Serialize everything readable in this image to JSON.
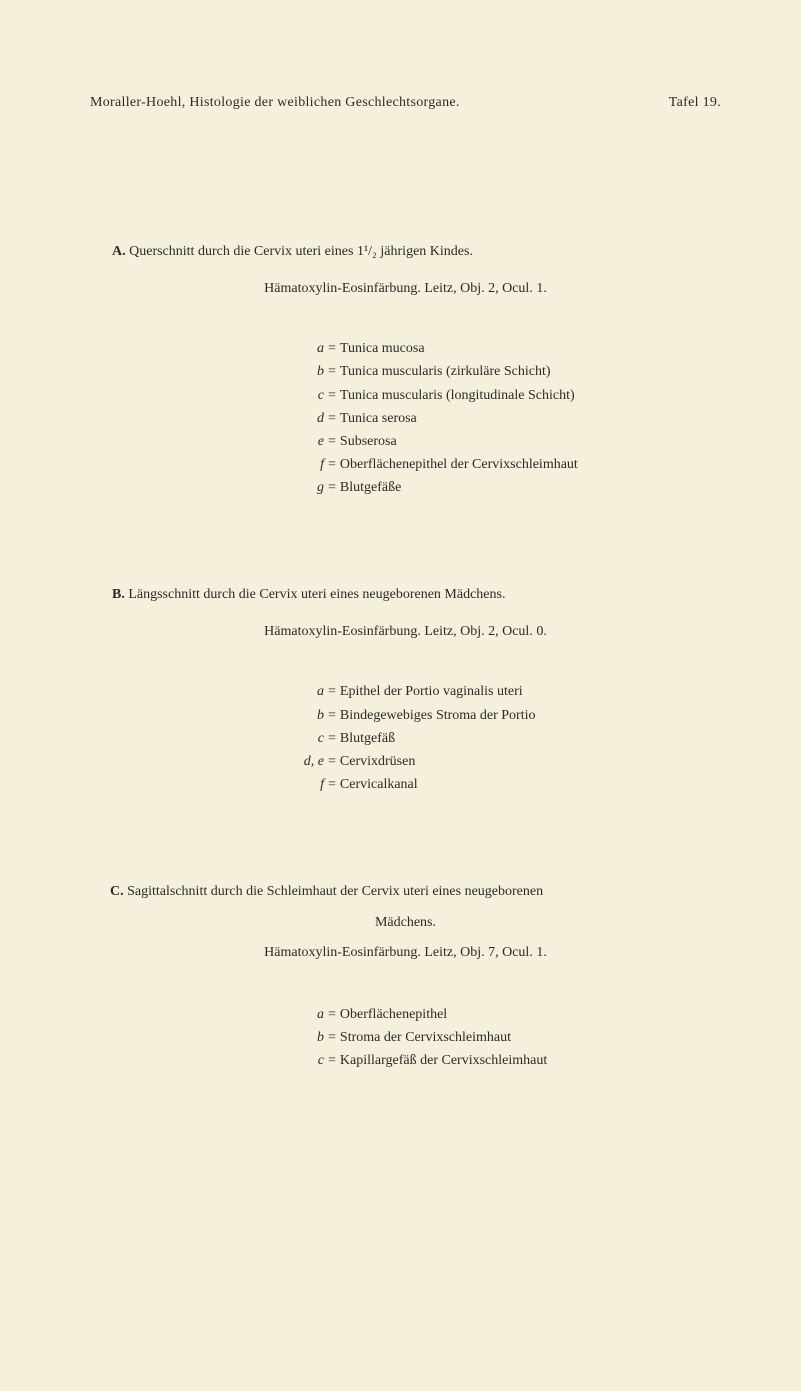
{
  "header": {
    "left": "Moraller-Hoehl, Histologie der weiblichen Geschlechtsorgane.",
    "right": "Tafel 19."
  },
  "sectionA": {
    "letter": "A.",
    "title": "Querschnitt durch die Cervix uteri eines 1¹/₂ jährigen Kindes.",
    "subtitle": "Hämatoxylin-Eosinfärbung.   Leitz, Obj. 2, Ocul. 1.",
    "items": [
      {
        "key": "a",
        "eq": "=",
        "value": "Tunica mucosa"
      },
      {
        "key": "b",
        "eq": "=",
        "value": "Tunica muscularis (zirkuläre Schicht)"
      },
      {
        "key": "c",
        "eq": "=",
        "value": "Tunica muscularis (longitudinale Schicht)"
      },
      {
        "key": "d",
        "eq": "=",
        "value": "Tunica serosa"
      },
      {
        "key": "e",
        "eq": "=",
        "value": "Subserosa"
      },
      {
        "key": "f",
        "eq": "=",
        "value": "Oberflächenepithel der Cervixschleimhaut"
      },
      {
        "key": "g",
        "eq": "=",
        "value": "Blutgefäße"
      }
    ]
  },
  "sectionB": {
    "letter": "B.",
    "title": "Längsschnitt durch die Cervix uteri eines neugeborenen Mädchens.",
    "subtitle": "Hämatoxylin-Eosinfärbung.   Leitz, Obj. 2, Ocul. 0.",
    "items": [
      {
        "key": "a",
        "eq": "=",
        "value": "Epithel der Portio vaginalis uteri"
      },
      {
        "key": "b",
        "eq": "=",
        "value": "Bindegewebiges Stroma der Portio"
      },
      {
        "key": "c",
        "eq": "=",
        "value": "Blutgefäß"
      },
      {
        "key": "d, e",
        "eq": "=",
        "value": "Cervixdrüsen"
      },
      {
        "key": "f",
        "eq": "=",
        "value": "Cervicalkanal"
      }
    ]
  },
  "sectionC": {
    "letter": "C.",
    "title": "Sagittalschnitt durch die Schleimhaut der Cervix uteri eines neugeborenen",
    "maedchens": "Mädchens.",
    "subtitle": "Hämatoxylin-Eosinfärbung.   Leitz, Obj. 7, Ocul. 1.",
    "items": [
      {
        "key": "a",
        "eq": "=",
        "value": "Oberflächenepithel"
      },
      {
        "key": "b",
        "eq": "=",
        "value": "Stroma der Cervixschleimhaut"
      },
      {
        "key": "c",
        "eq": "=",
        "value": "Kapillargefäß der Cervixschleimhaut"
      }
    ]
  },
  "colors": {
    "background": "#f5f0db",
    "text": "#2a2a2a"
  },
  "fonts": {
    "body": "Georgia, Times New Roman, serif",
    "sizeBody": 14
  }
}
